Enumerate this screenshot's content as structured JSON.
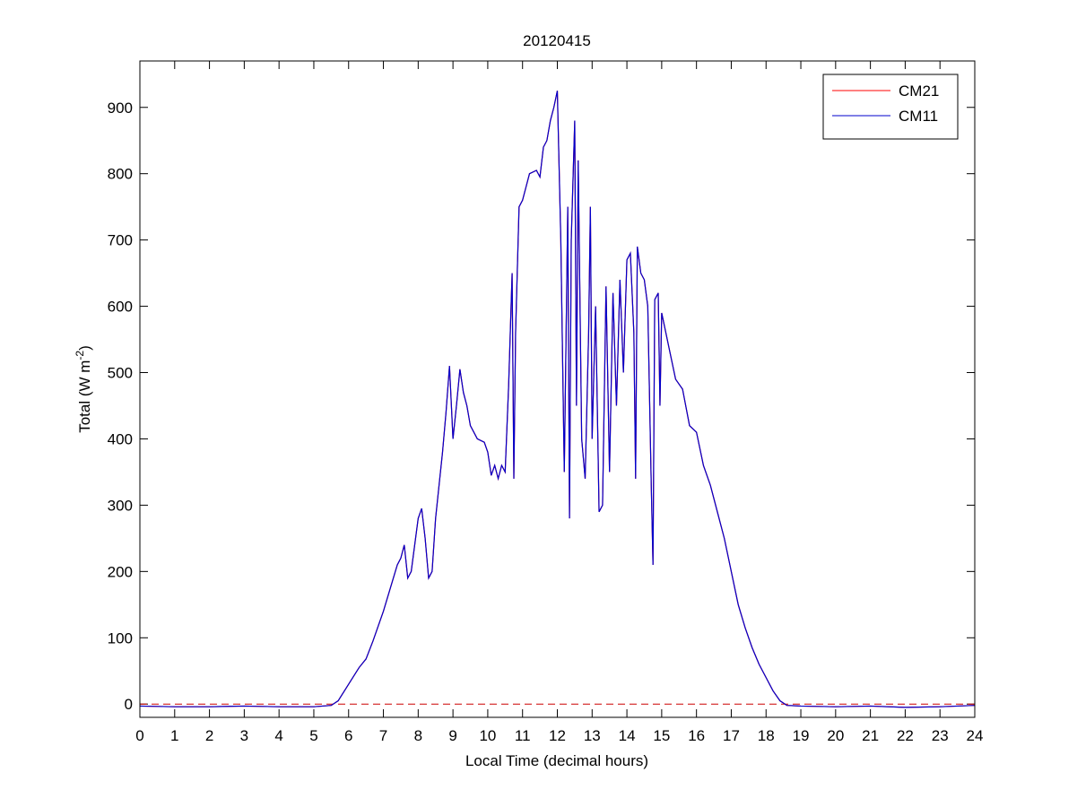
{
  "chart_data": {
    "type": "line",
    "title": "20120415",
    "xlabel": "Local Time (decimal hours)",
    "ylabel": {
      "text": "Total (W m",
      "superscript": "-2",
      "suffix": ")"
    },
    "xlim": [
      0,
      24
    ],
    "ylim": [
      -20,
      970
    ],
    "xticks": [
      0,
      1,
      2,
      3,
      4,
      5,
      6,
      7,
      8,
      9,
      10,
      11,
      12,
      13,
      14,
      15,
      16,
      17,
      18,
      19,
      20,
      21,
      22,
      23,
      24
    ],
    "yticks": [
      0,
      100,
      200,
      300,
      400,
      500,
      600,
      700,
      800,
      900
    ],
    "grid": false,
    "legend": "northeast",
    "reference_line": {
      "y": 0,
      "color": "#cc0000",
      "style": "dashed"
    },
    "x": [
      0,
      1,
      2,
      3,
      4,
      5,
      5.5,
      5.7,
      6,
      6.3,
      6.5,
      6.7,
      7,
      7.2,
      7.4,
      7.5,
      7.6,
      7.7,
      7.8,
      7.9,
      8.0,
      8.1,
      8.2,
      8.3,
      8.4,
      8.5,
      8.6,
      8.7,
      8.8,
      8.9,
      9.0,
      9.1,
      9.2,
      9.3,
      9.4,
      9.5,
      9.7,
      9.9,
      10.0,
      10.1,
      10.2,
      10.3,
      10.4,
      10.5,
      10.6,
      10.7,
      10.75,
      10.8,
      10.9,
      11.0,
      11.1,
      11.2,
      11.4,
      11.5,
      11.6,
      11.7,
      11.8,
      11.9,
      12.0,
      12.1,
      12.2,
      12.3,
      12.35,
      12.4,
      12.5,
      12.55,
      12.6,
      12.7,
      12.8,
      12.9,
      12.95,
      13.0,
      13.1,
      13.2,
      13.3,
      13.4,
      13.5,
      13.6,
      13.7,
      13.8,
      13.9,
      14.0,
      14.1,
      14.2,
      14.25,
      14.3,
      14.4,
      14.5,
      14.6,
      14.7,
      14.75,
      14.8,
      14.9,
      14.95,
      15.0,
      15.2,
      15.4,
      15.6,
      15.8,
      16.0,
      16.2,
      16.4,
      16.6,
      16.8,
      17.0,
      17.2,
      17.4,
      17.6,
      17.8,
      18.0,
      18.2,
      18.4,
      18.6,
      19,
      20,
      21,
      22,
      23,
      24
    ],
    "series": [
      {
        "name": "CM21",
        "color": "#ff0000",
        "values": [
          -3,
          -4,
          -4,
          -3,
          -4,
          -4,
          -2,
          5,
          30,
          55,
          68,
          95,
          140,
          175,
          210,
          220,
          240,
          190,
          200,
          240,
          280,
          295,
          250,
          190,
          200,
          280,
          330,
          380,
          440,
          510,
          400,
          450,
          505,
          470,
          450,
          420,
          400,
          395,
          380,
          345,
          360,
          340,
          360,
          350,
          480,
          650,
          340,
          560,
          750,
          760,
          780,
          800,
          805,
          795,
          840,
          850,
          880,
          900,
          925,
          700,
          350,
          750,
          280,
          700,
          880,
          450,
          820,
          400,
          340,
          560,
          750,
          400,
          600,
          290,
          300,
          630,
          350,
          620,
          450,
          640,
          500,
          670,
          680,
          560,
          340,
          690,
          650,
          640,
          600,
          330,
          210,
          610,
          620,
          450,
          590,
          540,
          490,
          475,
          420,
          410,
          360,
          330,
          290,
          250,
          200,
          150,
          115,
          85,
          60,
          40,
          20,
          5,
          -2,
          -3,
          -4,
          -3,
          -5,
          -4,
          -2
        ]
      },
      {
        "name": "CM11",
        "color": "#0000cc",
        "values": [
          -3,
          -4,
          -4,
          -3,
          -4,
          -4,
          -2,
          5,
          30,
          55,
          68,
          95,
          140,
          175,
          210,
          220,
          240,
          190,
          200,
          240,
          280,
          295,
          250,
          190,
          200,
          280,
          330,
          380,
          440,
          510,
          400,
          450,
          505,
          470,
          450,
          420,
          400,
          395,
          380,
          345,
          360,
          340,
          360,
          350,
          480,
          650,
          340,
          560,
          750,
          760,
          780,
          800,
          805,
          795,
          840,
          850,
          880,
          900,
          925,
          700,
          350,
          750,
          280,
          700,
          880,
          450,
          820,
          400,
          340,
          560,
          750,
          400,
          600,
          290,
          300,
          630,
          350,
          620,
          450,
          640,
          500,
          670,
          680,
          560,
          340,
          690,
          650,
          640,
          600,
          330,
          210,
          610,
          620,
          450,
          590,
          540,
          490,
          475,
          420,
          410,
          360,
          330,
          290,
          250,
          200,
          150,
          115,
          85,
          60,
          40,
          20,
          5,
          -2,
          -3,
          -4,
          -3,
          -5,
          -4,
          -2
        ]
      }
    ]
  }
}
